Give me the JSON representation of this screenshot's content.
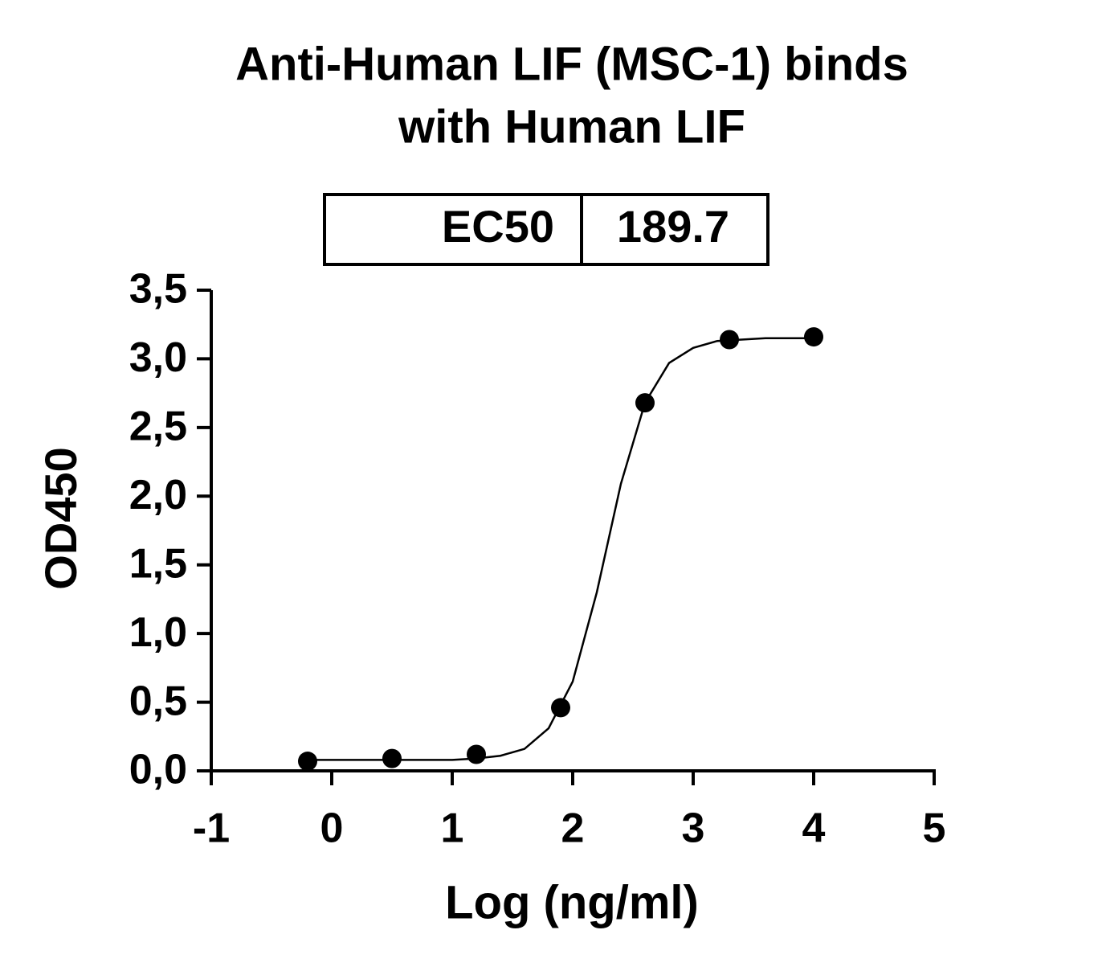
{
  "chart_data": {
    "type": "scatter",
    "title": [
      "Anti-Human LIF (MSC-1) binds",
      "with Human LIF"
    ],
    "annotation": {
      "label": "EC50",
      "value": 189.7
    },
    "xlabel": "Log (ng/ml)",
    "ylabel": "OD450",
    "xlim": [
      -1,
      5
    ],
    "xticks": [
      -1,
      0,
      1,
      2,
      3,
      4,
      5
    ],
    "ylim": [
      0,
      3.5
    ],
    "yticks": [
      {
        "value": 0,
        "label": "0,0"
      },
      {
        "value": 0.5,
        "label": "0,5"
      },
      {
        "value": 1,
        "label": "1,0"
      },
      {
        "value": 1.5,
        "label": "1,5"
      },
      {
        "value": 2,
        "label": "2,0"
      },
      {
        "value": 2.5,
        "label": "2,5"
      },
      {
        "value": 3,
        "label": "3,0"
      },
      {
        "value": 3.5,
        "label": "3,5"
      }
    ],
    "points": {
      "color": "#000000",
      "x": [
        -0.2,
        0.5,
        1.2,
        1.9,
        2.6,
        3.3,
        4.0
      ],
      "values": [
        0.07,
        0.09,
        0.12,
        0.46,
        2.68,
        3.14,
        3.16
      ]
    },
    "fit": {
      "color": "#000000",
      "x": [
        -0.2,
        0.0,
        0.2,
        0.4,
        0.6,
        0.8,
        1.0,
        1.2,
        1.4,
        1.6,
        1.8,
        2.0,
        2.2,
        2.4,
        2.6,
        2.8,
        3.0,
        3.2,
        3.4,
        3.6,
        3.8,
        4.0
      ],
      "values": [
        0.08,
        0.08,
        0.08,
        0.08,
        0.08,
        0.08,
        0.08,
        0.09,
        0.11,
        0.16,
        0.31,
        0.65,
        1.3,
        2.09,
        2.68,
        2.97,
        3.08,
        3.13,
        3.14,
        3.15,
        3.15,
        3.15
      ]
    }
  }
}
